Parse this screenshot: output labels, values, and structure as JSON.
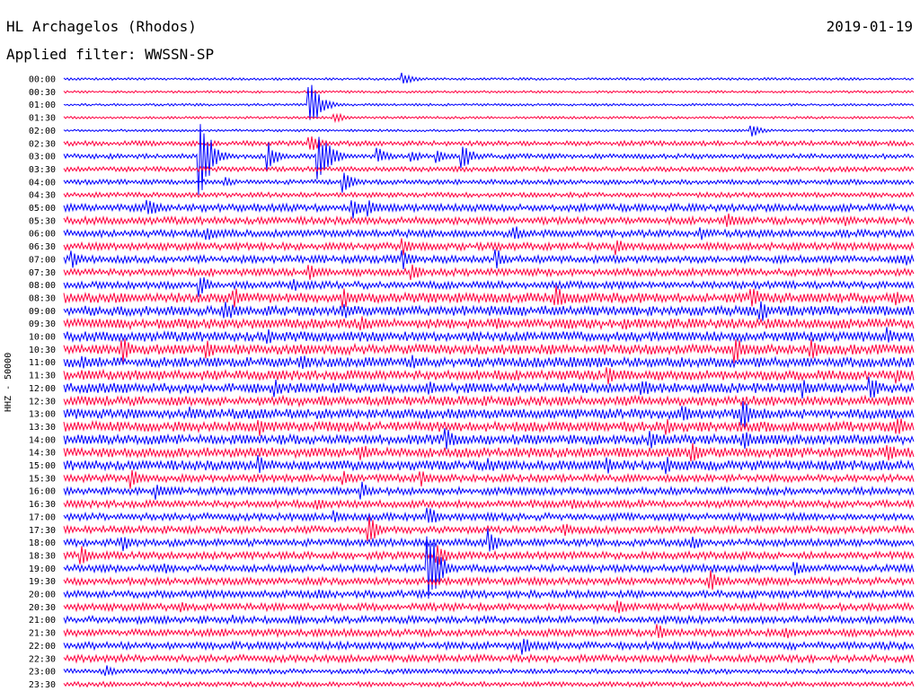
{
  "header": {
    "station": "HL Archagelos (Rhodos)",
    "date": "2019-01-19",
    "filter": "Applied filter: WWSSN-SP"
  },
  "chart_data": {
    "type": "line",
    "subtype": "helicorder",
    "title": "HL Archagelos (Rhodos)",
    "ylabel": "HHZ - 50000",
    "line_times": [
      "00:00",
      "00:30",
      "01:00",
      "01:30",
      "02:00",
      "02:30",
      "03:00",
      "03:30",
      "04:00",
      "04:30",
      "05:00",
      "05:30",
      "06:00",
      "06:30",
      "07:00",
      "07:30",
      "08:00",
      "08:30",
      "09:00",
      "09:30",
      "10:00",
      "10:30",
      "11:00",
      "11:30",
      "12:00",
      "12:30",
      "13:00",
      "13:30",
      "14:00",
      "14:30",
      "15:00",
      "15:30",
      "16:00",
      "16:30",
      "17:00",
      "17:30",
      "18:00",
      "18:30",
      "19:00",
      "19:30",
      "20:00",
      "20:30",
      "21:00",
      "21:30",
      "22:00",
      "22:30",
      "23:00",
      "23:30"
    ],
    "series_colors": [
      "#0000ff",
      "#ff0040"
    ],
    "noise_level": [
      1,
      1,
      1,
      1,
      1,
      2,
      2,
      2,
      2,
      2,
      3,
      3,
      3,
      3,
      3,
      3,
      3,
      4,
      4,
      4,
      4,
      4,
      4,
      4,
      4,
      4,
      4,
      4,
      4,
      4,
      4,
      3,
      3,
      3,
      3,
      3,
      3,
      3,
      3,
      3,
      3,
      3,
      3,
      3,
      3,
      3,
      2,
      2
    ],
    "events": [
      {
        "line": 0,
        "x": 0.4,
        "amp": 8
      },
      {
        "line": 2,
        "x": 0.29,
        "amp": 30
      },
      {
        "line": 3,
        "x": 0.32,
        "amp": 6
      },
      {
        "line": 4,
        "x": 0.81,
        "amp": 8
      },
      {
        "line": 5,
        "x": 0.29,
        "amp": 12
      },
      {
        "line": 6,
        "x": 0.16,
        "amp": 60
      },
      {
        "line": 6,
        "x": 0.24,
        "amp": 18
      },
      {
        "line": 6,
        "x": 0.3,
        "amp": 28
      },
      {
        "line": 6,
        "x": 0.31,
        "amp": 18
      },
      {
        "line": 6,
        "x": 0.37,
        "amp": 10
      },
      {
        "line": 6,
        "x": 0.41,
        "amp": 8
      },
      {
        "line": 6,
        "x": 0.44,
        "amp": 8
      },
      {
        "line": 6,
        "x": 0.47,
        "amp": 15
      },
      {
        "line": 8,
        "x": 0.33,
        "amp": 12
      },
      {
        "line": 8,
        "x": 0.19,
        "amp": 6
      },
      {
        "line": 10,
        "x": 0.1,
        "amp": 12
      },
      {
        "line": 10,
        "x": 0.34,
        "amp": 14
      },
      {
        "line": 10,
        "x": 0.36,
        "amp": 10
      },
      {
        "line": 11,
        "x": 0.78,
        "amp": 10
      },
      {
        "line": 11,
        "x": 0.92,
        "amp": 7
      },
      {
        "line": 12,
        "x": 0.17,
        "amp": 10
      },
      {
        "line": 12,
        "x": 0.53,
        "amp": 10
      },
      {
        "line": 12,
        "x": 0.75,
        "amp": 8
      },
      {
        "line": 13,
        "x": 0.65,
        "amp": 10
      },
      {
        "line": 13,
        "x": 0.4,
        "amp": 10
      },
      {
        "line": 14,
        "x": 0.01,
        "amp": 12
      },
      {
        "line": 14,
        "x": 0.4,
        "amp": 12
      },
      {
        "line": 14,
        "x": 0.51,
        "amp": 12
      },
      {
        "line": 14,
        "x": 0.99,
        "amp": 8
      },
      {
        "line": 15,
        "x": 0.29,
        "amp": 10
      },
      {
        "line": 15,
        "x": 0.41,
        "amp": 12
      },
      {
        "line": 16,
        "x": 0.16,
        "amp": 14
      },
      {
        "line": 16,
        "x": 0.27,
        "amp": 8
      },
      {
        "line": 17,
        "x": 0.2,
        "amp": 14
      },
      {
        "line": 17,
        "x": 0.33,
        "amp": 12
      },
      {
        "line": 17,
        "x": 0.58,
        "amp": 14
      },
      {
        "line": 17,
        "x": 0.81,
        "amp": 14
      },
      {
        "line": 17,
        "x": 0.98,
        "amp": 10
      },
      {
        "line": 18,
        "x": 0.19,
        "amp": 14
      },
      {
        "line": 18,
        "x": 0.33,
        "amp": 10
      },
      {
        "line": 18,
        "x": 0.82,
        "amp": 14
      },
      {
        "line": 19,
        "x": 0.35,
        "amp": 10
      },
      {
        "line": 19,
        "x": 0.51,
        "amp": 8
      },
      {
        "line": 19,
        "x": 0.66,
        "amp": 8
      },
      {
        "line": 20,
        "x": 0.24,
        "amp": 10
      },
      {
        "line": 20,
        "x": 0.97,
        "amp": 12
      },
      {
        "line": 21,
        "x": 0.07,
        "amp": 14
      },
      {
        "line": 21,
        "x": 0.17,
        "amp": 12
      },
      {
        "line": 21,
        "x": 0.79,
        "amp": 16
      },
      {
        "line": 21,
        "x": 0.88,
        "amp": 14
      },
      {
        "line": 22,
        "x": 0.02,
        "amp": 10
      },
      {
        "line": 22,
        "x": 0.28,
        "amp": 12
      },
      {
        "line": 22,
        "x": 0.41,
        "amp": 10
      },
      {
        "line": 22,
        "x": 0.63,
        "amp": 8
      },
      {
        "line": 23,
        "x": 0.64,
        "amp": 12
      },
      {
        "line": 23,
        "x": 0.98,
        "amp": 10
      },
      {
        "line": 24,
        "x": 0.25,
        "amp": 10
      },
      {
        "line": 24,
        "x": 0.43,
        "amp": 8
      },
      {
        "line": 24,
        "x": 0.68,
        "amp": 12
      },
      {
        "line": 24,
        "x": 0.87,
        "amp": 12
      },
      {
        "line": 24,
        "x": 0.95,
        "amp": 14
      },
      {
        "line": 26,
        "x": 0.15,
        "amp": 8
      },
      {
        "line": 26,
        "x": 0.73,
        "amp": 10
      },
      {
        "line": 26,
        "x": 0.8,
        "amp": 18
      },
      {
        "line": 27,
        "x": 0.23,
        "amp": 12
      },
      {
        "line": 27,
        "x": 0.71,
        "amp": 10
      },
      {
        "line": 27,
        "x": 0.98,
        "amp": 14
      },
      {
        "line": 28,
        "x": 0.45,
        "amp": 14
      },
      {
        "line": 28,
        "x": 0.69,
        "amp": 12
      },
      {
        "line": 28,
        "x": 0.8,
        "amp": 12
      },
      {
        "line": 29,
        "x": 0.35,
        "amp": 12
      },
      {
        "line": 29,
        "x": 0.74,
        "amp": 12
      },
      {
        "line": 29,
        "x": 0.97,
        "amp": 12
      },
      {
        "line": 30,
        "x": 0.23,
        "amp": 12
      },
      {
        "line": 30,
        "x": 0.5,
        "amp": 10
      },
      {
        "line": 30,
        "x": 0.64,
        "amp": 10
      },
      {
        "line": 30,
        "x": 0.71,
        "amp": 10
      },
      {
        "line": 31,
        "x": 0.08,
        "amp": 12
      },
      {
        "line": 31,
        "x": 0.33,
        "amp": 10
      },
      {
        "line": 31,
        "x": 0.42,
        "amp": 10
      },
      {
        "line": 32,
        "x": 0.11,
        "amp": 10
      },
      {
        "line": 32,
        "x": 0.35,
        "amp": 12
      },
      {
        "line": 33,
        "x": 0.3,
        "amp": 8
      },
      {
        "line": 33,
        "x": 0.6,
        "amp": 6
      },
      {
        "line": 34,
        "x": 0.43,
        "amp": 12
      },
      {
        "line": 34,
        "x": 0.32,
        "amp": 8
      },
      {
        "line": 35,
        "x": 0.36,
        "amp": 18
      },
      {
        "line": 35,
        "x": 0.59,
        "amp": 8
      },
      {
        "line": 36,
        "x": 0.07,
        "amp": 10
      },
      {
        "line": 36,
        "x": 0.5,
        "amp": 16
      },
      {
        "line": 36,
        "x": 0.74,
        "amp": 10
      },
      {
        "line": 37,
        "x": 0.02,
        "amp": 12
      },
      {
        "line": 37,
        "x": 0.44,
        "amp": 14
      },
      {
        "line": 38,
        "x": 0.43,
        "amp": 46
      },
      {
        "line": 38,
        "x": 0.86,
        "amp": 10
      },
      {
        "line": 38,
        "x": 0.12,
        "amp": 6
      },
      {
        "line": 39,
        "x": 0.76,
        "amp": 14
      },
      {
        "line": 40,
        "x": 0.3,
        "amp": 8
      },
      {
        "line": 41,
        "x": 0.65,
        "amp": 10
      },
      {
        "line": 41,
        "x": 0.14,
        "amp": 6
      },
      {
        "line": 42,
        "x": 0.2,
        "amp": 6
      },
      {
        "line": 43,
        "x": 0.7,
        "amp": 10
      },
      {
        "line": 43,
        "x": 0.85,
        "amp": 8
      },
      {
        "line": 44,
        "x": 0.54,
        "amp": 12
      },
      {
        "line": 46,
        "x": 0.05,
        "amp": 8
      }
    ]
  }
}
